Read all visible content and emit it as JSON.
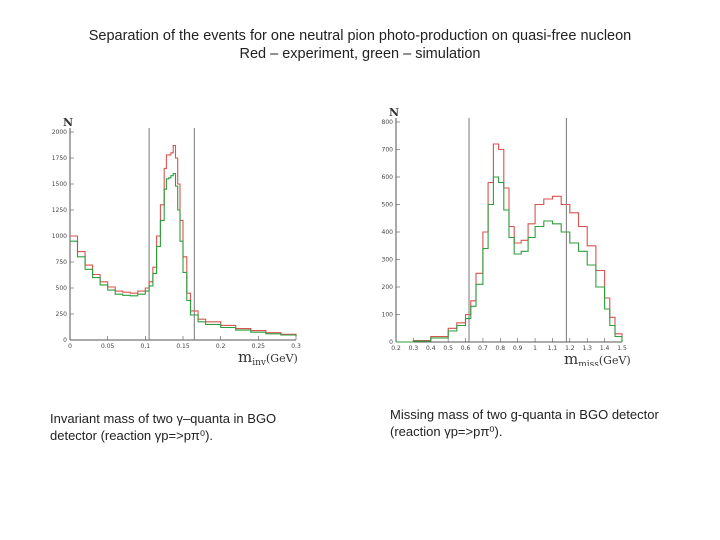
{
  "slide": {
    "title_line1": "Separation of the events for one neutral pion photo-production on quasi-free nucleon",
    "title_line2": "Red – experiment, green – simulation",
    "caption_left": "Invariant mass of two γ–quanta in BGO detector (reaction γp=>pπ⁰).",
    "caption_right": "Missing mass of two g-quanta in BGO detector (reaction γp=>pπ⁰)."
  },
  "colors": {
    "experiment": "#d9534f",
    "simulation": "#2e9e3e",
    "axis": "#555555",
    "cut": "#777777"
  },
  "chart_data": [
    {
      "type": "line",
      "ylabel": "N",
      "xlabel_main": "m",
      "xlabel_sub": "inv",
      "xlabel_unit": "(GeV)",
      "xlim": [
        0,
        0.3
      ],
      "ylim": [
        0,
        2000
      ],
      "x_ticks": [
        "0",
        "0.05",
        "0.1",
        "0.15",
        "0.2",
        "0.25",
        "0.3"
      ],
      "y_ticks": [
        "0",
        "250",
        "500",
        "750",
        "1000",
        "1250",
        "1500",
        "1750",
        "2000"
      ],
      "cuts": [
        0.105,
        0.165
      ],
      "x": [
        0.0,
        0.01,
        0.02,
        0.03,
        0.04,
        0.05,
        0.06,
        0.07,
        0.08,
        0.09,
        0.1,
        0.105,
        0.11,
        0.115,
        0.12,
        0.125,
        0.128,
        0.131,
        0.134,
        0.137,
        0.14,
        0.143,
        0.146,
        0.15,
        0.155,
        0.16,
        0.17,
        0.18,
        0.2,
        0.22,
        0.24,
        0.26,
        0.28,
        0.3
      ],
      "series": [
        {
          "name": "Red – experiment",
          "values": [
            1000,
            850,
            720,
            630,
            560,
            510,
            470,
            460,
            450,
            470,
            500,
            560,
            700,
            1000,
            1300,
            1650,
            1780,
            1780,
            1800,
            1870,
            1750,
            1500,
            1150,
            800,
            450,
            280,
            200,
            175,
            140,
            110,
            90,
            70,
            55,
            40
          ]
        },
        {
          "name": "green – simulation",
          "values": [
            950,
            800,
            680,
            600,
            530,
            480,
            440,
            430,
            425,
            440,
            470,
            520,
            640,
            900,
            1150,
            1450,
            1550,
            1560,
            1580,
            1600,
            1480,
            1250,
            950,
            650,
            380,
            240,
            175,
            150,
            120,
            95,
            75,
            60,
            48,
            35
          ]
        }
      ]
    },
    {
      "type": "line",
      "ylabel": "N",
      "xlabel_main": "m",
      "xlabel_sub": "miss",
      "xlabel_unit": "(GeV)",
      "xlim": [
        0.2,
        1.5
      ],
      "ylim": [
        0,
        800
      ],
      "x_ticks": [
        "0.2",
        "0.3",
        "0.4",
        "0.5",
        "0.6",
        "0.7",
        "0.8",
        "0.9",
        "1",
        "1.1",
        "1.2",
        "1.3",
        "1.4",
        "1.5"
      ],
      "y_ticks": [
        "0",
        "100",
        "200",
        "300",
        "400",
        "500",
        "600",
        "700",
        "800"
      ],
      "cuts": [
        0.62,
        1.18
      ],
      "x": [
        0.2,
        0.3,
        0.4,
        0.5,
        0.55,
        0.6,
        0.63,
        0.66,
        0.7,
        0.73,
        0.76,
        0.79,
        0.82,
        0.85,
        0.88,
        0.92,
        0.96,
        1.0,
        1.05,
        1.1,
        1.15,
        1.2,
        1.25,
        1.3,
        1.35,
        1.4,
        1.43,
        1.46,
        1.5
      ],
      "series": [
        {
          "name": "Red – experiment",
          "values": [
            0,
            5,
            20,
            50,
            70,
            100,
            150,
            250,
            400,
            580,
            720,
            700,
            560,
            420,
            360,
            370,
            430,
            500,
            520,
            530,
            500,
            470,
            420,
            350,
            260,
            160,
            90,
            30,
            0
          ]
        },
        {
          "name": "green – simulation",
          "values": [
            0,
            3,
            15,
            40,
            60,
            85,
            130,
            210,
            340,
            500,
            600,
            580,
            480,
            380,
            320,
            330,
            380,
            420,
            440,
            430,
            400,
            360,
            330,
            280,
            200,
            120,
            60,
            20,
            0
          ]
        }
      ]
    }
  ]
}
